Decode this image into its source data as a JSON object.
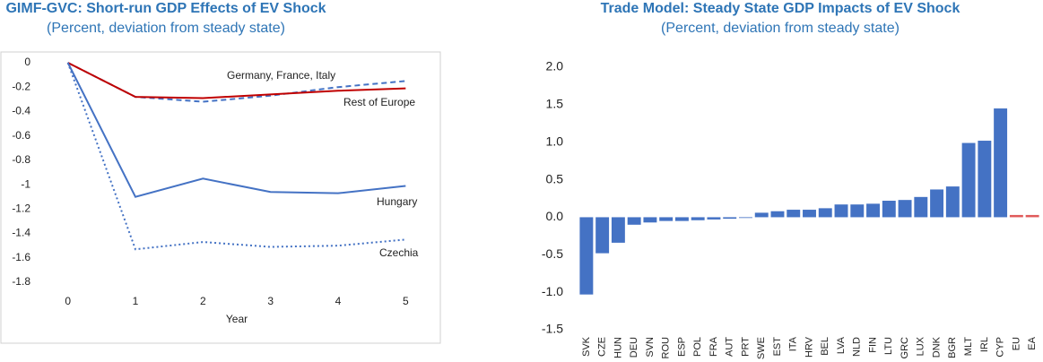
{
  "chart_data": [
    {
      "type": "line",
      "title": "GIMF-GVC: Short-run GDP Effects of EV Shock",
      "subtitle": "(Percent, deviation from steady state)",
      "x_label": "Year",
      "x": [
        0,
        1,
        2,
        3,
        4,
        5
      ],
      "xlim": [
        -0.5,
        5.5
      ],
      "xticks": [
        0,
        1,
        2,
        3,
        4,
        5
      ],
      "ylim": [
        -1.8,
        0
      ],
      "yticks": [
        0,
        -0.2,
        -0.4,
        -0.6,
        -0.8,
        -1,
        -1.2,
        -1.4,
        -1.6,
        -1.8
      ],
      "grid": false,
      "series": [
        {
          "name": "Germany, France, Italy",
          "color": "#4472c4",
          "dash": "dashed",
          "values": [
            0,
            -0.28,
            -0.32,
            -0.27,
            -0.2,
            -0.15
          ]
        },
        {
          "name": "Rest of Europe",
          "color": "#c00000",
          "dash": "solid",
          "values": [
            0,
            -0.28,
            -0.29,
            -0.26,
            -0.23,
            -0.21
          ]
        },
        {
          "name": "Hungary",
          "color": "#4472c4",
          "dash": "solid",
          "values": [
            0,
            -1.1,
            -0.95,
            -1.06,
            -1.07,
            -1.01
          ]
        },
        {
          "name": "Czechia",
          "color": "#4472c4",
          "dash": "dotted",
          "values": [
            0,
            -1.53,
            -1.47,
            -1.51,
            -1.5,
            -1.45
          ]
        }
      ]
    },
    {
      "type": "bar",
      "title": "Trade Model: Steady State GDP Impacts of EV Shock",
      "subtitle": "(Percent, deviation from steady state)",
      "categories": [
        "SVK",
        "CZE",
        "HUN",
        "DEU",
        "SVN",
        "ROU",
        "ESP",
        "POL",
        "FRA",
        "AUT",
        "PRT",
        "SWE",
        "EST",
        "ITA",
        "HRV",
        "BEL",
        "LVA",
        "NLD",
        "FIN",
        "LTU",
        "GRC",
        "LUX",
        "DNK",
        "BGR",
        "MLT",
        "IRL",
        "CYP",
        "EU",
        "EA"
      ],
      "values": [
        -1.03,
        -0.48,
        -0.34,
        -0.1,
        -0.07,
        -0.05,
        -0.05,
        -0.04,
        -0.03,
        -0.02,
        -0.01,
        0.06,
        0.08,
        0.1,
        0.1,
        0.12,
        0.17,
        0.17,
        0.18,
        0.22,
        0.23,
        0.27,
        0.37,
        0.41,
        0.99,
        1.02,
        1.45,
        0.03,
        0.03
      ],
      "colors": [
        "#4472c4",
        "#4472c4",
        "#4472c4",
        "#4472c4",
        "#4472c4",
        "#4472c4",
        "#4472c4",
        "#4472c4",
        "#4472c4",
        "#4472c4",
        "#4472c4",
        "#4472c4",
        "#4472c4",
        "#4472c4",
        "#4472c4",
        "#4472c4",
        "#4472c4",
        "#4472c4",
        "#4472c4",
        "#4472c4",
        "#4472c4",
        "#4472c4",
        "#4472c4",
        "#4472c4",
        "#4472c4",
        "#4472c4",
        "#4472c4",
        "#e05a5a",
        "#e05a5a"
      ],
      "ylim": [
        -1.5,
        2.0
      ],
      "yticks": [
        {
          "value": 2,
          "label": "2.0"
        },
        1.5,
        {
          "value": 1,
          "label": "1.0"
        },
        0.5,
        {
          "value": 0,
          "label": "0.0"
        },
        -0.5,
        {
          "value": -1,
          "label": "-1.0"
        },
        -1.5
      ],
      "grid": false
    }
  ]
}
